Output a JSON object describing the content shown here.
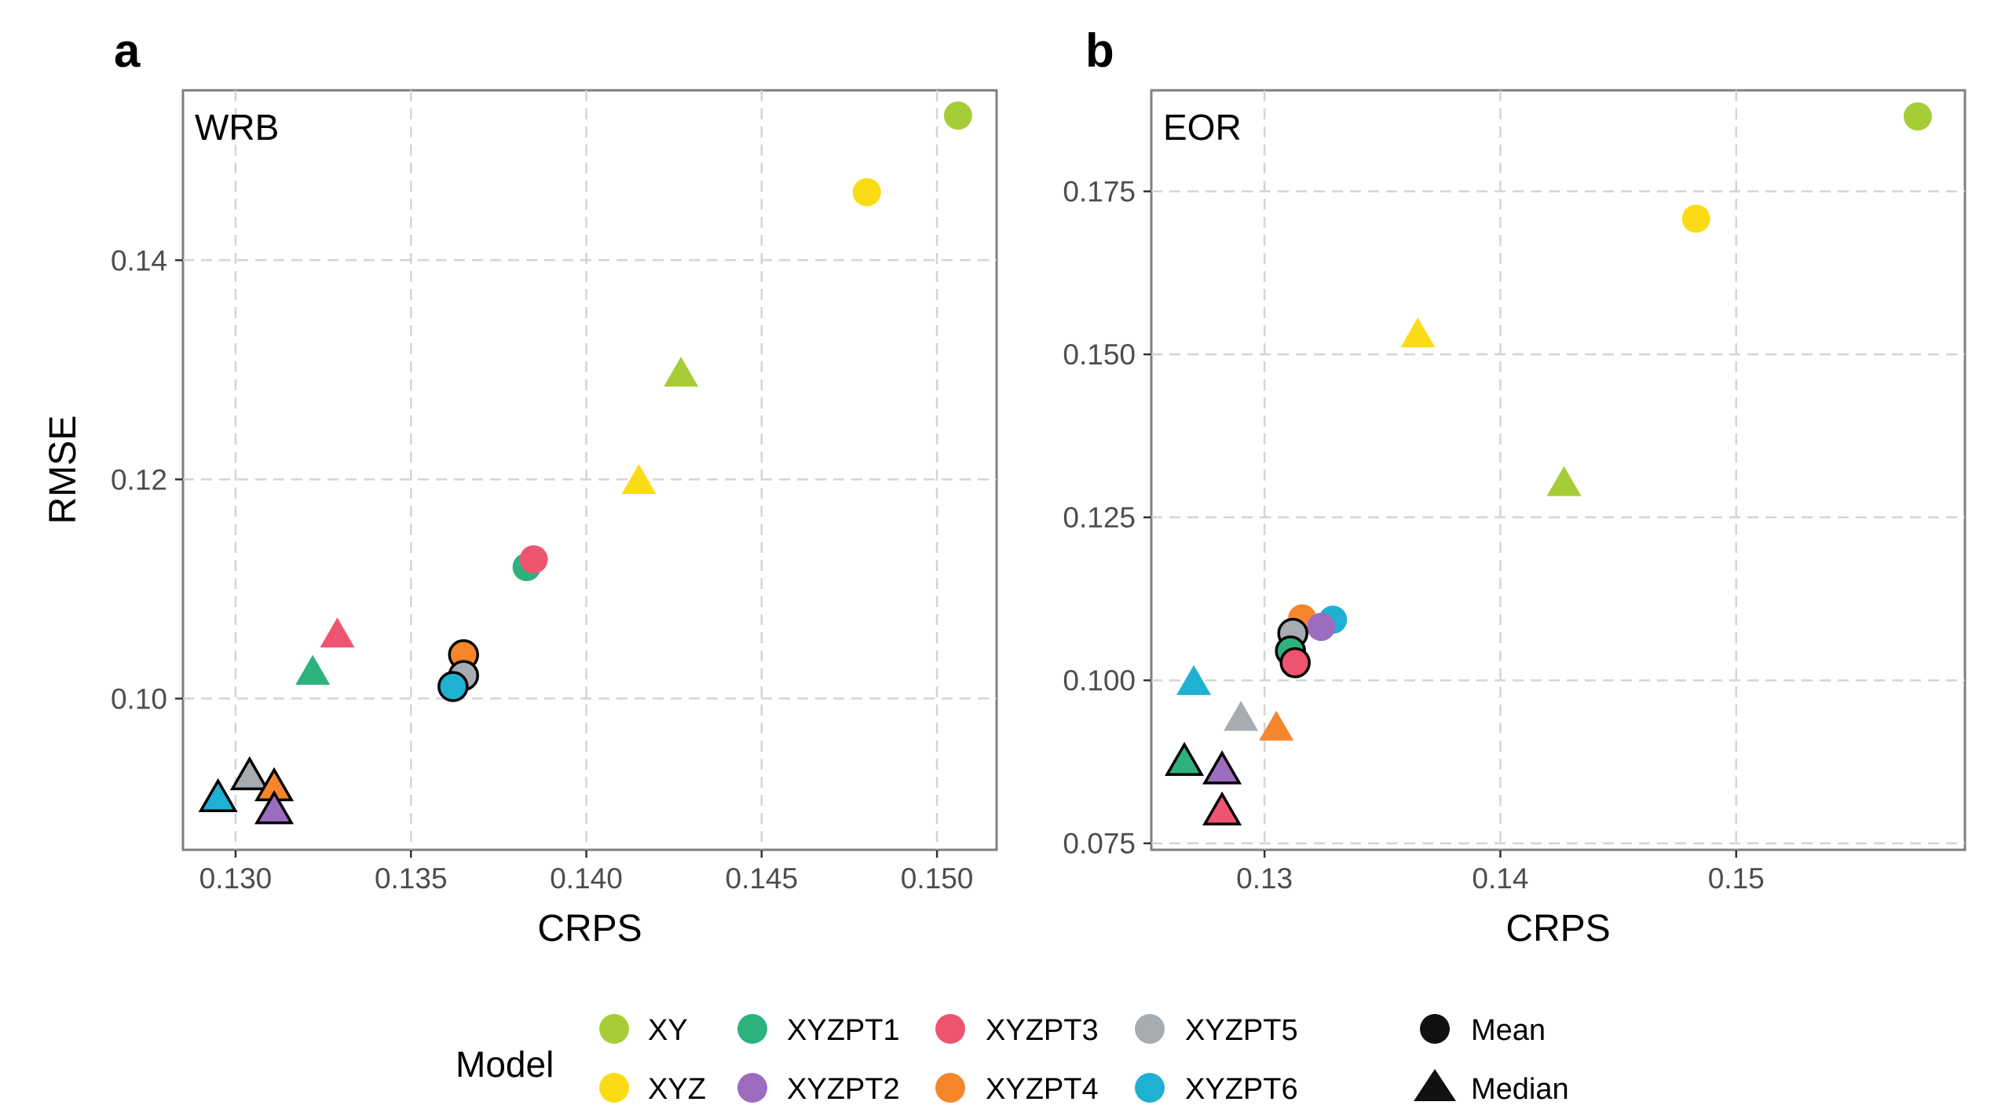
{
  "chart_data": [
    {
      "type": "scatter",
      "panel_letter": "a",
      "panel_tag": "WRB",
      "xlabel": "CRPS",
      "ylabel": "RMSE",
      "xlim": [
        0.1285,
        0.1517
      ],
      "ylim": [
        0.0862,
        0.1555
      ],
      "xticks": [
        0.13,
        0.135,
        0.14,
        0.145,
        0.15
      ],
      "xtick_labels": [
        "0.130",
        "0.135",
        "0.140",
        "0.145",
        "0.150"
      ],
      "yticks": [
        0.1,
        0.12,
        0.14
      ],
      "ytick_labels": [
        "0.10",
        "0.12",
        "0.14"
      ],
      "grid": true,
      "points": [
        {
          "model": "XY",
          "stat": "Mean",
          "x": 0.1506,
          "y": 0.1532,
          "outlined": false
        },
        {
          "model": "XYZ",
          "stat": "Mean",
          "x": 0.148,
          "y": 0.1462,
          "outlined": false
        },
        {
          "model": "XY",
          "stat": "Median",
          "x": 0.1427,
          "y": 0.1295,
          "outlined": false
        },
        {
          "model": "XYZ",
          "stat": "Median",
          "x": 0.1415,
          "y": 0.1197,
          "outlined": false
        },
        {
          "model": "XYZPT1",
          "stat": "Mean",
          "x": 0.1383,
          "y": 0.112,
          "outlined": false
        },
        {
          "model": "XYZPT3",
          "stat": "Mean",
          "x": 0.1385,
          "y": 0.1127,
          "outlined": false
        },
        {
          "model": "XYZPT3",
          "stat": "Median",
          "x": 0.1329,
          "y": 0.1057,
          "outlined": false
        },
        {
          "model": "XYZPT1",
          "stat": "Median",
          "x": 0.1322,
          "y": 0.1023,
          "outlined": false
        },
        {
          "model": "XYZPT4",
          "stat": "Mean",
          "x": 0.1365,
          "y": 0.104,
          "outlined": true
        },
        {
          "model": "XYZPT5",
          "stat": "Mean",
          "x": 0.1365,
          "y": 0.1021,
          "outlined": true
        },
        {
          "model": "XYZPT6",
          "stat": "Mean",
          "x": 0.1362,
          "y": 0.1011,
          "outlined": true
        },
        {
          "model": "XYZPT5",
          "stat": "Median",
          "x": 0.1304,
          "y": 0.0928,
          "outlined": true
        },
        {
          "model": "XYZPT4",
          "stat": "Median",
          "x": 0.1311,
          "y": 0.0918,
          "outlined": true
        },
        {
          "model": "XYZPT6",
          "stat": "Median",
          "x": 0.1295,
          "y": 0.0908,
          "outlined": true
        },
        {
          "model": "XYZPT2",
          "stat": "Median",
          "x": 0.1311,
          "y": 0.0897,
          "outlined": true
        }
      ]
    },
    {
      "type": "scatter",
      "panel_letter": "b",
      "panel_tag": "EOR",
      "xlabel": "CRPS",
      "ylabel": "",
      "xlim": [
        0.1252,
        0.1597
      ],
      "ylim": [
        0.074,
        0.1905
      ],
      "xticks": [
        0.13,
        0.14,
        0.15
      ],
      "xtick_labels": [
        "0.13",
        "0.14",
        "0.15"
      ],
      "yticks": [
        0.075,
        0.1,
        0.125,
        0.15,
        0.175
      ],
      "ytick_labels": [
        "0.075",
        "0.100",
        "0.125",
        "0.150",
        "0.175"
      ],
      "grid": true,
      "points": [
        {
          "model": "XY",
          "stat": "Mean",
          "x": 0.1577,
          "y": 0.1865,
          "outlined": false
        },
        {
          "model": "XYZ",
          "stat": "Mean",
          "x": 0.1483,
          "y": 0.1708,
          "outlined": false
        },
        {
          "model": "XYZ",
          "stat": "Median",
          "x": 0.1365,
          "y": 0.1528,
          "outlined": false
        },
        {
          "model": "XY",
          "stat": "Median",
          "x": 0.1427,
          "y": 0.13,
          "outlined": false
        },
        {
          "model": "XYZPT6",
          "stat": "Mean",
          "x": 0.1329,
          "y": 0.1093,
          "outlined": false
        },
        {
          "model": "XYZPT4",
          "stat": "Mean",
          "x": 0.1316,
          "y": 0.1095,
          "outlined": false
        },
        {
          "model": "XYZPT2",
          "stat": "Mean",
          "x": 0.1324,
          "y": 0.1082,
          "outlined": false
        },
        {
          "model": "XYZPT5",
          "stat": "Mean",
          "x": 0.1312,
          "y": 0.1072,
          "outlined": true
        },
        {
          "model": "XYZPT1",
          "stat": "Mean",
          "x": 0.1311,
          "y": 0.1045,
          "outlined": true
        },
        {
          "model": "XYZPT3",
          "stat": "Mean",
          "x": 0.1313,
          "y": 0.1027,
          "outlined": true
        },
        {
          "model": "XYZPT6",
          "stat": "Median",
          "x": 0.127,
          "y": 0.0995,
          "outlined": false
        },
        {
          "model": "XYZPT5",
          "stat": "Median",
          "x": 0.129,
          "y": 0.094,
          "outlined": false
        },
        {
          "model": "XYZPT4",
          "stat": "Median",
          "x": 0.1305,
          "y": 0.0925,
          "outlined": false
        },
        {
          "model": "XYZPT1",
          "stat": "Median",
          "x": 0.1266,
          "y": 0.0873,
          "outlined": true
        },
        {
          "model": "XYZPT2",
          "stat": "Median",
          "x": 0.1282,
          "y": 0.086,
          "outlined": true
        },
        {
          "model": "XYZPT3",
          "stat": "Median",
          "x": 0.1282,
          "y": 0.0797,
          "outlined": true
        }
      ]
    }
  ],
  "legend": {
    "title": "Model",
    "models": [
      {
        "name": "XY",
        "color": "#a6cd37"
      },
      {
        "name": "XYZ",
        "color": "#fbdc14"
      },
      {
        "name": "XYZPT1",
        "color": "#2db27d"
      },
      {
        "name": "XYZPT2",
        "color": "#9c6cbf"
      },
      {
        "name": "XYZPT3",
        "color": "#ee5470"
      },
      {
        "name": "XYZPT4",
        "color": "#f5862c"
      },
      {
        "name": "XYZPT5",
        "color": "#a7acb0"
      },
      {
        "name": "XYZPT6",
        "color": "#1fb1d3"
      }
    ],
    "stats": [
      {
        "name": "Mean",
        "shape": "circle"
      },
      {
        "name": "Median",
        "shape": "triangle"
      }
    ]
  },
  "style": {
    "panel_border": "#7f7f7f",
    "grid_color": "#d4d4d4",
    "marker_outline": "#000000"
  }
}
